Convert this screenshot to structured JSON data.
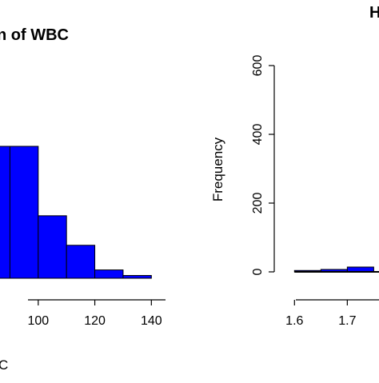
{
  "chart_data": [
    {
      "type": "bar",
      "title": "n of WBC",
      "xlabel": "C",
      "ylabel": "",
      "x_ticks": [
        "100",
        "120",
        "140"
      ],
      "bins": [
        {
          "start": 80,
          "end": 90,
          "value": 0.38
        },
        {
          "start": 90,
          "end": 100,
          "value": 0.38
        },
        {
          "start": 100,
          "end": 110,
          "value": 0.18
        },
        {
          "start": 110,
          "end": 120,
          "value": 0.095
        },
        {
          "start": 120,
          "end": 130,
          "value": 0.024
        },
        {
          "start": 130,
          "end": 140,
          "value": 0.008
        }
      ],
      "xlim": [
        78,
        145
      ],
      "ylim": [
        0,
        0.38
      ],
      "bar_color": "#0000ff",
      "grid": false
    },
    {
      "type": "bar",
      "title": "H",
      "xlabel": "",
      "ylabel": "Frequency",
      "y_ticks": [
        "0",
        "200",
        "400",
        "600"
      ],
      "x_ticks": [
        "1.6",
        "1.7"
      ],
      "bins": [
        {
          "start": 1.6,
          "end": 1.65,
          "value": 4
        },
        {
          "start": 1.65,
          "end": 1.7,
          "value": 7
        },
        {
          "start": 1.7,
          "end": 1.75,
          "value": 14
        }
      ],
      "xlim": [
        1.595,
        1.76
      ],
      "ylim": [
        0,
        600
      ],
      "bar_color": "#0000ff",
      "grid": false
    }
  ]
}
